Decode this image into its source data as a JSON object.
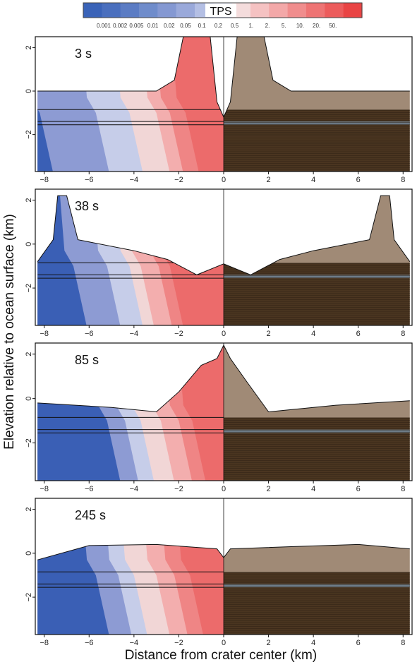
{
  "chart_data": {
    "type": "heatmap",
    "colorbar": {
      "title": "TPS",
      "tick_labels": [
        "0.001",
        "0.002",
        "0.005",
        "0.01",
        "0.02",
        "0.05",
        "0.1",
        "0.2",
        "0.5",
        "1.",
        "2.",
        "5.",
        "10.",
        "20.",
        "50."
      ],
      "colors": [
        "#3a63b8",
        "#4a6fbe",
        "#5b7cc4",
        "#6f8ccb",
        "#8498d2",
        "#9aa9da",
        "#b4bfe4",
        "#cdd4ee",
        "#f4dcdc",
        "#f5c2c2",
        "#f3a8a8",
        "#f08d8d",
        "#ee7474",
        "#ec5c5c",
        "#e94444"
      ]
    },
    "xlabel": "Distance from crater center (km)",
    "ylabel": "Elevation relative to ocean surface (km)",
    "xlim": [
      -8.4,
      8.4
    ],
    "ylim": [
      -3.7,
      2.5
    ],
    "x_ticks": [
      -8,
      -6,
      -4,
      -2,
      0,
      2,
      4,
      6,
      8
    ],
    "y_ticks": [
      -2,
      0,
      2
    ],
    "left_half": "TPS",
    "right_half": "material layers",
    "right_colors": {
      "sediment": "#a08a76",
      "basement": "#4a3520",
      "layer": "#6e7c88"
    },
    "panels": [
      {
        "time_label": "3 s",
        "surface": [
          [
            -8.3,
            0
          ],
          [
            -3,
            0
          ],
          [
            -2.2,
            0.5
          ],
          [
            -1.8,
            2.5
          ],
          [
            -0.6,
            2.5
          ],
          [
            -0.3,
            -0.5
          ],
          [
            0,
            -1.2
          ],
          [
            0.3,
            -0.5
          ],
          [
            0.6,
            2.5
          ],
          [
            1.8,
            2.5
          ],
          [
            2.2,
            0.5
          ],
          [
            3,
            0
          ],
          [
            8.3,
            0
          ]
        ],
        "front": [
          -8,
          -5.5,
          -4,
          -2.8,
          -2.2,
          -1.5
        ],
        "boundaries": [
          -0.85,
          -1.4,
          -1.55
        ]
      },
      {
        "time_label": "38 s",
        "surface": [
          [
            -8.3,
            -0.8
          ],
          [
            -7.6,
            0.2
          ],
          [
            -7.4,
            2.2
          ],
          [
            -7,
            2.2
          ],
          [
            -6.5,
            0.2
          ],
          [
            -4,
            -0.3
          ],
          [
            -2.5,
            -0.7
          ],
          [
            -1.2,
            -1.4
          ],
          [
            0,
            -0.9
          ],
          [
            1.2,
            -1.4
          ],
          [
            2.5,
            -0.7
          ],
          [
            4,
            -0.3
          ],
          [
            6.5,
            0.2
          ],
          [
            7,
            2.2
          ],
          [
            7.4,
            2.2
          ],
          [
            7.6,
            0.2
          ],
          [
            8.3,
            -0.8
          ]
        ],
        "front": [
          -6.5,
          -5,
          -4,
          -3.5,
          -2.7,
          -2.2
        ],
        "boundaries": [
          -0.85,
          -1.4,
          -1.55
        ]
      },
      {
        "time_label": "85 s",
        "surface": [
          [
            -8.3,
            -0.2
          ],
          [
            -5,
            -0.4
          ],
          [
            -3,
            -0.6
          ],
          [
            -2,
            0.3
          ],
          [
            -1,
            1.5
          ],
          [
            -0.3,
            1.8
          ],
          [
            0,
            2.4
          ],
          [
            0.3,
            1.8
          ],
          [
            1,
            0.8
          ],
          [
            2,
            -0.6
          ],
          [
            3,
            -0.5
          ],
          [
            5,
            -0.3
          ],
          [
            8.3,
            -0.1
          ]
        ],
        "front": [
          -5,
          -4.2,
          -3.5,
          -2.6,
          -1.8,
          -1.2
        ],
        "boundaries": [
          -0.85,
          -1.4,
          -1.55
        ]
      },
      {
        "time_label": "245 s",
        "surface": [
          [
            -8.3,
            -0.3
          ],
          [
            -6,
            0.35
          ],
          [
            -3,
            0.4
          ],
          [
            -0.3,
            0.2
          ],
          [
            0,
            -0.2
          ],
          [
            0.3,
            0.2
          ],
          [
            3,
            0.3
          ],
          [
            6,
            0.4
          ],
          [
            8.3,
            0.2
          ]
        ],
        "front": [
          -5.5,
          -4.5,
          -3.8,
          -2.8,
          -2,
          -1.3
        ],
        "boundaries": [
          -0.85,
          -1.4,
          -1.55
        ]
      }
    ]
  }
}
